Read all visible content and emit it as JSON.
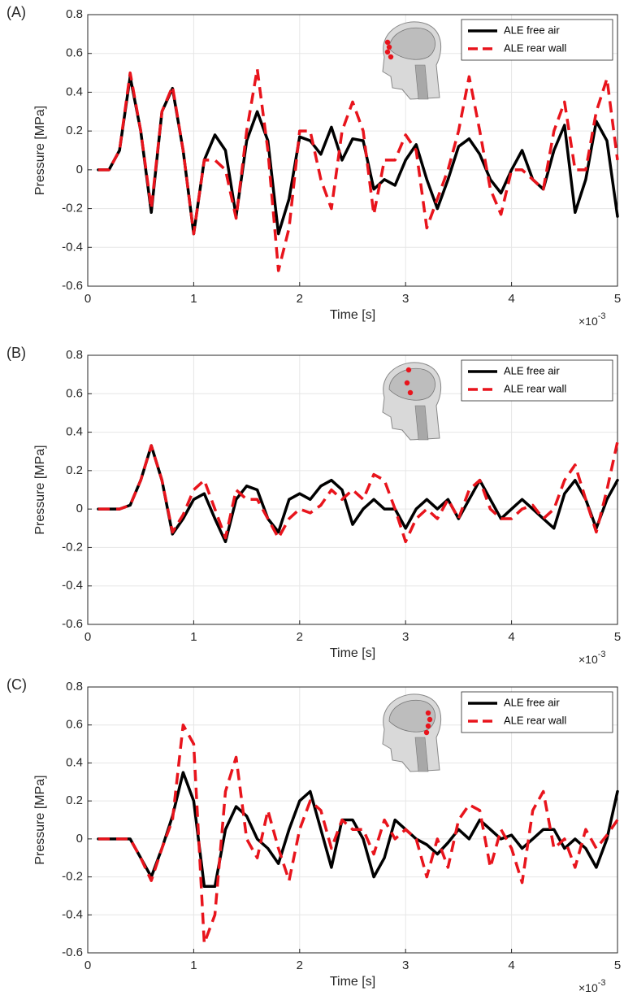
{
  "chart_data": [
    {
      "type": "line",
      "panel_label": "(A)",
      "xlabel": "Time [s]",
      "ylabel": "Pressure [MPa]",
      "x_multiplier": {
        "base": "×10",
        "exponent": "-3"
      },
      "xlim": [
        0,
        5
      ],
      "ylim": [
        -0.6,
        0.8
      ],
      "xticks": [
        0,
        1,
        2,
        3,
        4,
        5
      ],
      "yticks": [
        -0.6,
        -0.4,
        -0.2,
        0,
        0.2,
        0.4,
        0.6,
        0.8
      ],
      "grid": true,
      "legend": "upper right",
      "x": [
        0.1,
        0.2,
        0.3,
        0.4,
        0.5,
        0.6,
        0.7,
        0.8,
        0.9,
        1.0,
        1.1,
        1.2,
        1.3,
        1.4,
        1.5,
        1.6,
        1.7,
        1.8,
        1.9,
        2.0,
        2.1,
        2.2,
        2.3,
        2.4,
        2.5,
        2.6,
        2.7,
        2.8,
        2.9,
        3.0,
        3.1,
        3.2,
        3.3,
        3.4,
        3.5,
        3.6,
        3.7,
        3.8,
        3.9,
        4.0,
        4.1,
        4.2,
        4.3,
        4.4,
        4.5,
        4.6,
        4.7,
        4.8,
        4.9,
        5.0
      ],
      "series": [
        {
          "name": "ALE free air",
          "color": "#000000",
          "line_style": "solid",
          "values": [
            0,
            0,
            0.1,
            0.48,
            0.2,
            -0.22,
            0.3,
            0.42,
            0.1,
            -0.33,
            0.05,
            0.18,
            0.1,
            -0.24,
            0.15,
            0.3,
            0.15,
            -0.33,
            -0.15,
            0.17,
            0.15,
            0.08,
            0.22,
            0.05,
            0.16,
            0.15,
            -0.1,
            -0.05,
            -0.08,
            0.05,
            0.13,
            -0.05,
            -0.2,
            -0.05,
            0.12,
            0.16,
            0.08,
            -0.05,
            -0.12,
            0,
            0.1,
            -0.05,
            -0.1,
            0.1,
            0.23,
            -0.22,
            -0.05,
            0.25,
            0.15,
            -0.24
          ]
        },
        {
          "name": "ALE rear wall",
          "color": "#e8141c",
          "line_style": "dashed",
          "values": [
            0,
            0,
            0.1,
            0.5,
            0.2,
            -0.2,
            0.3,
            0.43,
            0.1,
            -0.33,
            0.05,
            0.05,
            0,
            -0.25,
            0.2,
            0.52,
            0.1,
            -0.52,
            -0.3,
            0.2,
            0.2,
            -0.05,
            -0.2,
            0.2,
            0.35,
            0.2,
            -0.23,
            0.05,
            0.05,
            0.18,
            0.1,
            -0.3,
            -0.15,
            0,
            0.2,
            0.48,
            0.2,
            -0.1,
            -0.23,
            0,
            0,
            -0.05,
            -0.1,
            0.2,
            0.35,
            0,
            0,
            0.3,
            0.47,
            0.05
          ]
        }
      ]
    },
    {
      "type": "line",
      "panel_label": "(B)",
      "xlabel": "Time [s]",
      "ylabel": "Pressure [MPa]",
      "x_multiplier": {
        "base": "×10",
        "exponent": "-3"
      },
      "xlim": [
        0,
        5
      ],
      "ylim": [
        -0.6,
        0.8
      ],
      "xticks": [
        0,
        1,
        2,
        3,
        4,
        5
      ],
      "yticks": [
        -0.6,
        -0.4,
        -0.2,
        0,
        0.2,
        0.4,
        0.6,
        0.8
      ],
      "grid": true,
      "legend": "upper right",
      "x": [
        0.1,
        0.2,
        0.3,
        0.4,
        0.5,
        0.6,
        0.7,
        0.8,
        0.9,
        1.0,
        1.1,
        1.2,
        1.3,
        1.4,
        1.5,
        1.6,
        1.7,
        1.8,
        1.9,
        2.0,
        2.1,
        2.2,
        2.3,
        2.4,
        2.5,
        2.6,
        2.7,
        2.8,
        2.9,
        3.0,
        3.1,
        3.2,
        3.3,
        3.4,
        3.5,
        3.6,
        3.7,
        3.8,
        3.9,
        4.0,
        4.1,
        4.2,
        4.3,
        4.4,
        4.5,
        4.6,
        4.7,
        4.8,
        4.9,
        5.0
      ],
      "series": [
        {
          "name": "ALE free air",
          "color": "#000000",
          "line_style": "solid",
          "values": [
            0,
            0,
            0,
            0.02,
            0.15,
            0.33,
            0.15,
            -0.13,
            -0.05,
            0.05,
            0.08,
            -0.05,
            -0.17,
            0.05,
            0.12,
            0.1,
            -0.05,
            -0.12,
            0.05,
            0.08,
            0.05,
            0.12,
            0.15,
            0.1,
            -0.08,
            0,
            0.05,
            0,
            0,
            -0.1,
            0,
            0.05,
            0,
            0.05,
            -0.05,
            0.05,
            0.15,
            0.05,
            -0.05,
            0,
            0.05,
            0,
            -0.05,
            -0.1,
            0.08,
            0.15,
            0.05,
            -0.1,
            0.05,
            0.15
          ]
        },
        {
          "name": "ALE rear wall",
          "color": "#e8141c",
          "line_style": "dashed",
          "values": [
            0,
            0,
            0,
            0.02,
            0.15,
            0.33,
            0.15,
            -0.12,
            -0.03,
            0.1,
            0.15,
            0,
            -0.15,
            0.1,
            0.05,
            0.05,
            -0.05,
            -0.15,
            -0.05,
            0,
            -0.02,
            0.02,
            0.1,
            0.05,
            0.1,
            0.05,
            0.18,
            0.15,
            0,
            -0.17,
            -0.05,
            0,
            -0.05,
            0.05,
            -0.05,
            0.1,
            0.15,
            0,
            -0.05,
            -0.05,
            0,
            0.02,
            -0.05,
            0,
            0.15,
            0.23,
            0.05,
            -0.12,
            0.1,
            0.35
          ]
        }
      ]
    },
    {
      "type": "line",
      "panel_label": "(C)",
      "xlabel": "Time [s]",
      "ylabel": "Pressure [MPa]",
      "x_multiplier": {
        "base": "×10",
        "exponent": "-3"
      },
      "xlim": [
        0,
        5
      ],
      "ylim": [
        -0.6,
        0.8
      ],
      "xticks": [
        0,
        1,
        2,
        3,
        4,
        5
      ],
      "yticks": [
        -0.6,
        -0.4,
        -0.2,
        0,
        0.2,
        0.4,
        0.6,
        0.8
      ],
      "grid": true,
      "legend": "upper right",
      "x": [
        0.1,
        0.2,
        0.3,
        0.4,
        0.5,
        0.6,
        0.7,
        0.8,
        0.9,
        1.0,
        1.1,
        1.2,
        1.3,
        1.4,
        1.5,
        1.6,
        1.7,
        1.8,
        1.9,
        2.0,
        2.1,
        2.2,
        2.3,
        2.4,
        2.5,
        2.6,
        2.7,
        2.8,
        2.9,
        3.0,
        3.1,
        3.2,
        3.3,
        3.4,
        3.5,
        3.6,
        3.7,
        3.8,
        3.9,
        4.0,
        4.1,
        4.2,
        4.3,
        4.4,
        4.5,
        4.6,
        4.7,
        4.8,
        4.9,
        5.0
      ],
      "series": [
        {
          "name": "ALE free air",
          "color": "#000000",
          "line_style": "solid",
          "values": [
            0,
            0,
            0,
            0,
            -0.1,
            -0.2,
            -0.05,
            0.12,
            0.35,
            0.2,
            -0.25,
            -0.25,
            0.05,
            0.17,
            0.12,
            0,
            -0.05,
            -0.13,
            0.05,
            0.2,
            0.25,
            0.05,
            -0.15,
            0.1,
            0.1,
            0,
            -0.2,
            -0.1,
            0.1,
            0.05,
            0,
            -0.03,
            -0.08,
            -0.02,
            0.05,
            0,
            0.1,
            0.05,
            0,
            0.02,
            -0.05,
            0,
            0.05,
            0.05,
            -0.05,
            0,
            -0.05,
            -0.15,
            0,
            0.25
          ]
        },
        {
          "name": "ALE rear wall",
          "color": "#e8141c",
          "line_style": "dashed",
          "values": [
            0,
            0,
            0,
            0,
            -0.1,
            -0.22,
            -0.05,
            0.1,
            0.6,
            0.5,
            -0.55,
            -0.4,
            0.25,
            0.43,
            0,
            -0.1,
            0.15,
            -0.05,
            -0.22,
            0.05,
            0.2,
            0.15,
            -0.05,
            0.1,
            0.05,
            0.05,
            -0.08,
            0.1,
            0,
            0.05,
            0,
            -0.2,
            0,
            -0.15,
            0.1,
            0.18,
            0.15,
            -0.15,
            0.05,
            -0.05,
            -0.23,
            0.15,
            0.25,
            -0.05,
            0,
            -0.15,
            0.05,
            -0.05,
            0.02,
            0.1
          ]
        }
      ]
    }
  ]
}
